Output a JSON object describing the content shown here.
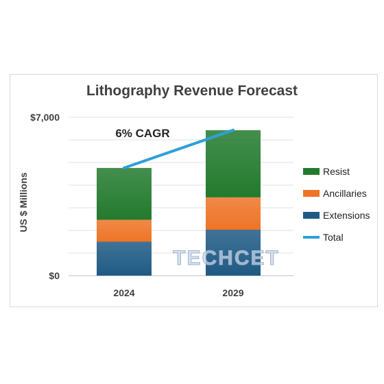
{
  "chart_data": {
    "type": "bar",
    "stacked": true,
    "title": "Lithography Revenue Forecast",
    "ylabel": "US $ Millions",
    "xlabel": "",
    "categories": [
      "2024",
      "2029"
    ],
    "ylim": [
      0,
      7000
    ],
    "yticks": [
      {
        "value": 0,
        "label": "$0"
      },
      {
        "value": 7000,
        "label": "$7,000"
      }
    ],
    "grid": true,
    "legend_position": "right",
    "series": [
      {
        "name": "Extensions",
        "values": [
          1500,
          2030
        ],
        "color": "#1f5a84"
      },
      {
        "name": "Ancillaries",
        "values": [
          970,
          1430
        ],
        "color": "#ee7427"
      },
      {
        "name": "Resist",
        "values": [
          2290,
          2970
        ],
        "color": "#237a2e"
      }
    ],
    "line_series": {
      "name": "Total",
      "values": [
        4760,
        6430
      ],
      "color": "#2e9fd8"
    },
    "annotation": "6% CAGR",
    "watermark": "TECHCET"
  }
}
